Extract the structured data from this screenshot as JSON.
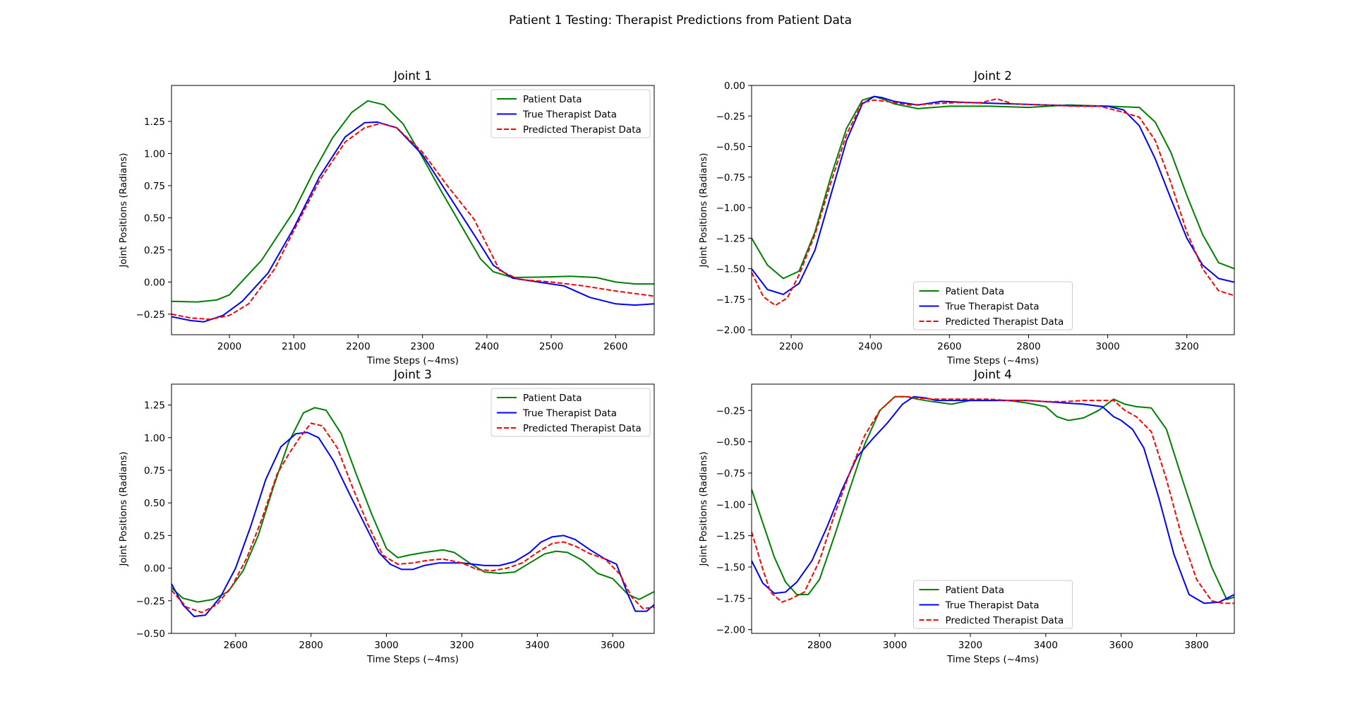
{
  "figure": {
    "title": "Patient 1 Testing: Therapist Predictions from Patient Data"
  },
  "chart_data": [
    {
      "type": "line",
      "title": "Joint 1",
      "xlabel": "Time Steps (~4ms)",
      "ylabel": "Joint Positions (Radians)",
      "xlim": [
        1910,
        2660
      ],
      "ylim": [
        -0.41,
        1.53
      ],
      "xticks": [
        2000,
        2100,
        2200,
        2300,
        2400,
        2500,
        2600
      ],
      "yticks": [
        -0.25,
        0.0,
        0.25,
        0.5,
        0.75,
        1.0,
        1.25
      ],
      "legend": "upper right",
      "series": [
        {
          "name": "Patient Data",
          "color": "#008000",
          "dash": "solid",
          "x": [
            1910,
            1950,
            1980,
            2000,
            2050,
            2100,
            2130,
            2160,
            2190,
            2215,
            2240,
            2270,
            2300,
            2330,
            2360,
            2390,
            2410,
            2440,
            2480,
            2530,
            2570,
            2600,
            2630,
            2660
          ],
          "y": [
            -0.15,
            -0.155,
            -0.14,
            -0.1,
            0.17,
            0.55,
            0.85,
            1.12,
            1.32,
            1.41,
            1.38,
            1.23,
            0.97,
            0.7,
            0.44,
            0.18,
            0.08,
            0.035,
            0.038,
            0.045,
            0.035,
            0.0,
            -0.015,
            -0.015
          ]
        },
        {
          "name": "True Therapist Data",
          "color": "#0000ff",
          "dash": "solid",
          "x": [
            1910,
            1940,
            1960,
            1990,
            2020,
            2060,
            2100,
            2140,
            2180,
            2210,
            2230,
            2260,
            2300,
            2340,
            2380,
            2410,
            2440,
            2480,
            2520,
            2560,
            2600,
            2630,
            2660
          ],
          "y": [
            -0.27,
            -0.3,
            -0.31,
            -0.26,
            -0.15,
            0.07,
            0.42,
            0.82,
            1.13,
            1.24,
            1.245,
            1.2,
            0.99,
            0.68,
            0.37,
            0.13,
            0.03,
            0.0,
            -0.03,
            -0.12,
            -0.17,
            -0.18,
            -0.17
          ]
        },
        {
          "name": "Predicted Therapist Data",
          "color": "#ff0000",
          "dash": "dashed",
          "x": [
            1910,
            1940,
            1970,
            2000,
            2030,
            2070,
            2100,
            2140,
            2180,
            2210,
            2235,
            2260,
            2300,
            2340,
            2380,
            2420,
            2450,
            2500,
            2550,
            2600,
            2660
          ],
          "y": [
            -0.25,
            -0.28,
            -0.29,
            -0.26,
            -0.17,
            0.1,
            0.4,
            0.79,
            1.09,
            1.2,
            1.235,
            1.2,
            1.01,
            0.74,
            0.49,
            0.09,
            0.02,
            0.0,
            -0.03,
            -0.07,
            -0.11
          ]
        }
      ]
    },
    {
      "type": "line",
      "title": "Joint 2",
      "xlabel": "Time Steps (~4ms)",
      "ylabel": "Joint Positions (Radians)",
      "xlim": [
        2100,
        3320
      ],
      "ylim": [
        -2.04,
        0.0
      ],
      "xticks": [
        2200,
        2400,
        2600,
        2800,
        3000,
        3200
      ],
      "yticks": [
        -2.0,
        -1.75,
        -1.5,
        -1.25,
        -1.0,
        -0.75,
        -0.5,
        -0.25,
        0.0
      ],
      "legend": "lower center",
      "series": [
        {
          "name": "Patient Data",
          "color": "#008000",
          "dash": "solid",
          "x": [
            2100,
            2140,
            2180,
            2220,
            2260,
            2300,
            2340,
            2380,
            2410,
            2430,
            2460,
            2520,
            2600,
            2700,
            2800,
            2900,
            3000,
            3080,
            3120,
            3160,
            3200,
            3240,
            3280,
            3320
          ],
          "y": [
            -1.25,
            -1.47,
            -1.58,
            -1.52,
            -1.2,
            -0.75,
            -0.35,
            -0.12,
            -0.09,
            -0.11,
            -0.15,
            -0.19,
            -0.17,
            -0.17,
            -0.18,
            -0.16,
            -0.17,
            -0.18,
            -0.3,
            -0.55,
            -0.9,
            -1.22,
            -1.45,
            -1.5
          ]
        },
        {
          "name": "True Therapist Data",
          "color": "#0000ff",
          "dash": "solid",
          "x": [
            2100,
            2140,
            2180,
            2220,
            2260,
            2300,
            2340,
            2380,
            2410,
            2430,
            2460,
            2520,
            2580,
            2650,
            2750,
            2850,
            2950,
            3000,
            3040,
            3080,
            3120,
            3160,
            3200,
            3240,
            3280,
            3320
          ],
          "y": [
            -1.5,
            -1.67,
            -1.71,
            -1.62,
            -1.35,
            -0.9,
            -0.45,
            -0.15,
            -0.09,
            -0.1,
            -0.13,
            -0.16,
            -0.13,
            -0.14,
            -0.15,
            -0.16,
            -0.17,
            -0.17,
            -0.2,
            -0.33,
            -0.6,
            -0.93,
            -1.25,
            -1.47,
            -1.58,
            -1.61
          ]
        },
        {
          "name": "Predicted Therapist Data",
          "color": "#ff0000",
          "dash": "dashed",
          "x": [
            2100,
            2130,
            2160,
            2190,
            2220,
            2260,
            2300,
            2340,
            2380,
            2410,
            2440,
            2500,
            2560,
            2620,
            2680,
            2720,
            2760,
            2840,
            2920,
            2980,
            3040,
            3080,
            3120,
            3160,
            3200,
            3240,
            3280,
            3320
          ],
          "y": [
            -1.53,
            -1.73,
            -1.8,
            -1.74,
            -1.55,
            -1.22,
            -0.8,
            -0.4,
            -0.14,
            -0.12,
            -0.13,
            -0.16,
            -0.15,
            -0.14,
            -0.14,
            -0.11,
            -0.15,
            -0.16,
            -0.17,
            -0.17,
            -0.22,
            -0.26,
            -0.45,
            -0.8,
            -1.2,
            -1.5,
            -1.68,
            -1.72
          ]
        }
      ]
    },
    {
      "type": "line",
      "title": "Joint 3",
      "xlabel": "Time Steps (~4ms)",
      "ylabel": "Joint Positions (Radians)",
      "xlim": [
        2430,
        3710
      ],
      "ylim": [
        -0.5,
        1.41
      ],
      "xticks": [
        2600,
        2800,
        3000,
        3200,
        3400,
        3600
      ],
      "yticks": [
        -0.5,
        -0.25,
        0.0,
        0.25,
        0.5,
        0.75,
        1.0,
        1.25
      ],
      "legend": "upper right",
      "series": [
        {
          "name": "Patient Data",
          "color": "#008000",
          "dash": "solid",
          "x": [
            2430,
            2460,
            2500,
            2540,
            2580,
            2620,
            2660,
            2700,
            2740,
            2780,
            2810,
            2840,
            2880,
            2920,
            2960,
            3000,
            3030,
            3060,
            3100,
            3150,
            3180,
            3220,
            3260,
            3300,
            3340,
            3380,
            3420,
            3450,
            3480,
            3520,
            3560,
            3600,
            3640,
            3670,
            3710
          ],
          "y": [
            -0.15,
            -0.23,
            -0.26,
            -0.24,
            -0.18,
            -0.02,
            0.25,
            0.62,
            0.96,
            1.19,
            1.23,
            1.21,
            1.03,
            0.72,
            0.42,
            0.15,
            0.08,
            0.1,
            0.12,
            0.14,
            0.12,
            0.04,
            -0.03,
            -0.04,
            -0.03,
            0.04,
            0.11,
            0.13,
            0.12,
            0.06,
            -0.04,
            -0.08,
            -0.2,
            -0.24,
            -0.18
          ]
        },
        {
          "name": "True Therapist Data",
          "color": "#0000ff",
          "dash": "solid",
          "x": [
            2430,
            2460,
            2490,
            2520,
            2560,
            2600,
            2640,
            2680,
            2720,
            2760,
            2790,
            2820,
            2860,
            2900,
            2940,
            2980,
            3010,
            3040,
            3070,
            3100,
            3140,
            3200,
            3260,
            3300,
            3340,
            3380,
            3410,
            3440,
            3470,
            3500,
            3540,
            3580,
            3610,
            3640,
            3660,
            3690,
            3710
          ],
          "y": [
            -0.12,
            -0.28,
            -0.37,
            -0.36,
            -0.22,
            0.0,
            0.32,
            0.68,
            0.93,
            1.03,
            1.04,
            1.0,
            0.82,
            0.58,
            0.35,
            0.12,
            0.03,
            -0.01,
            -0.01,
            0.02,
            0.04,
            0.04,
            0.02,
            0.02,
            0.05,
            0.12,
            0.2,
            0.24,
            0.25,
            0.22,
            0.14,
            0.07,
            0.03,
            -0.2,
            -0.33,
            -0.33,
            -0.28
          ]
        },
        {
          "name": "Predicted Therapist Data",
          "color": "#ff0000",
          "dash": "dashed",
          "x": [
            2430,
            2470,
            2510,
            2550,
            2590,
            2630,
            2670,
            2710,
            2740,
            2770,
            2800,
            2830,
            2870,
            2910,
            2950,
            2990,
            3030,
            3070,
            3110,
            3150,
            3200,
            3240,
            3280,
            3320,
            3360,
            3400,
            3440,
            3470,
            3500,
            3540,
            3580,
            3620,
            3650,
            3680,
            3710
          ],
          "y": [
            -0.17,
            -0.3,
            -0.34,
            -0.28,
            -0.14,
            0.08,
            0.38,
            0.72,
            0.87,
            1.0,
            1.11,
            1.09,
            0.92,
            0.62,
            0.34,
            0.1,
            0.03,
            0.04,
            0.06,
            0.07,
            0.04,
            -0.01,
            -0.02,
            0.0,
            0.04,
            0.12,
            0.19,
            0.2,
            0.17,
            0.11,
            0.07,
            -0.05,
            -0.22,
            -0.31,
            -0.3
          ]
        }
      ]
    },
    {
      "type": "line",
      "title": "Joint 4",
      "xlabel": "Time Steps (~4ms)",
      "ylabel": "Joint Positions (Radians)",
      "xlim": [
        2620,
        3900
      ],
      "ylim": [
        -2.03,
        -0.04
      ],
      "xticks": [
        2800,
        3000,
        3200,
        3400,
        3600,
        3800
      ],
      "yticks": [
        -2.0,
        -1.75,
        -1.5,
        -1.25,
        -1.0,
        -0.75,
        -0.5,
        -0.25
      ],
      "legend": "lower center",
      "series": [
        {
          "name": "Patient Data",
          "color": "#008000",
          "dash": "solid",
          "x": [
            2620,
            2650,
            2680,
            2710,
            2740,
            2770,
            2800,
            2840,
            2880,
            2920,
            2960,
            3000,
            3030,
            3060,
            3100,
            3150,
            3200,
            3250,
            3300,
            3350,
            3400,
            3430,
            3460,
            3500,
            3540,
            3580,
            3610,
            3640,
            3680,
            3720,
            3760,
            3800,
            3840,
            3880,
            3900
          ],
          "y": [
            -0.88,
            -1.15,
            -1.42,
            -1.62,
            -1.72,
            -1.72,
            -1.6,
            -1.25,
            -0.88,
            -0.52,
            -0.25,
            -0.14,
            -0.14,
            -0.16,
            -0.18,
            -0.2,
            -0.17,
            -0.17,
            -0.17,
            -0.19,
            -0.22,
            -0.3,
            -0.33,
            -0.31,
            -0.25,
            -0.16,
            -0.2,
            -0.22,
            -0.23,
            -0.4,
            -0.78,
            -1.15,
            -1.5,
            -1.76,
            -1.74
          ]
        },
        {
          "name": "True Therapist Data",
          "color": "#0000ff",
          "dash": "solid",
          "x": [
            2620,
            2650,
            2680,
            2710,
            2740,
            2780,
            2820,
            2860,
            2900,
            2940,
            2980,
            3020,
            3050,
            3080,
            3110,
            3150,
            3200,
            3250,
            3300,
            3350,
            3400,
            3450,
            3500,
            3550,
            3580,
            3600,
            3630,
            3660,
            3700,
            3740,
            3780,
            3820,
            3860,
            3900
          ],
          "y": [
            -1.45,
            -1.63,
            -1.71,
            -1.7,
            -1.62,
            -1.45,
            -1.18,
            -0.88,
            -0.62,
            -0.48,
            -0.35,
            -0.2,
            -0.14,
            -0.15,
            -0.17,
            -0.17,
            -0.17,
            -0.17,
            -0.17,
            -0.17,
            -0.18,
            -0.19,
            -0.2,
            -0.22,
            -0.3,
            -0.33,
            -0.4,
            -0.55,
            -0.95,
            -1.4,
            -1.72,
            -1.79,
            -1.78,
            -1.72
          ]
        },
        {
          "name": "Predicted Therapist Data",
          "color": "#ff0000",
          "dash": "dashed",
          "x": [
            2620,
            2650,
            2670,
            2700,
            2720,
            2760,
            2800,
            2840,
            2880,
            2920,
            2960,
            3000,
            3030,
            3060,
            3100,
            3150,
            3200,
            3250,
            3300,
            3350,
            3400,
            3450,
            3500,
            3550,
            3580,
            3610,
            3640,
            3680,
            3720,
            3760,
            3800,
            3840,
            3870,
            3900
          ],
          "y": [
            -1.22,
            -1.52,
            -1.7,
            -1.78,
            -1.76,
            -1.7,
            -1.45,
            -1.08,
            -0.75,
            -0.45,
            -0.25,
            -0.14,
            -0.14,
            -0.15,
            -0.16,
            -0.16,
            -0.16,
            -0.16,
            -0.17,
            -0.17,
            -0.18,
            -0.18,
            -0.17,
            -0.17,
            -0.17,
            -0.25,
            -0.3,
            -0.42,
            -0.8,
            -1.25,
            -1.6,
            -1.77,
            -1.79,
            -1.79
          ]
        }
      ]
    }
  ]
}
